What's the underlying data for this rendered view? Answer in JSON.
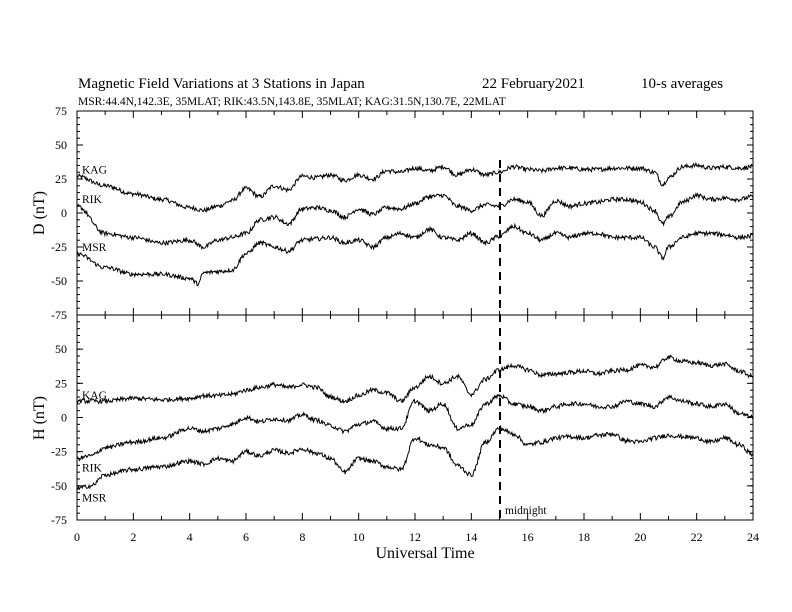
{
  "header": {
    "title": "Magnetic Field Variations at 3 Stations in Japan",
    "date": "22 February2021",
    "averaging": "10-s averages",
    "stations_line": "MSR:44.4N,142.3E, 35MLAT;  RIK:43.5N,143.8E, 35MLAT;  KAG:31.5N,130.7E, 22MLAT"
  },
  "chart_data": [
    {
      "type": "line",
      "panel": "top",
      "ylabel": "D (nT)",
      "ylim": [
        -75,
        75
      ],
      "xlim": [
        0,
        24
      ],
      "yticks": [
        "75",
        "50",
        "25",
        "0",
        "-25",
        "-50",
        "-75"
      ],
      "series": [
        {
          "name": "KAG",
          "x": [
            0,
            1,
            2,
            3,
            4,
            4.5,
            5,
            5.5,
            6,
            6.5,
            7,
            7.5,
            8,
            8.5,
            9,
            9.5,
            10,
            10.5,
            11,
            11.5,
            12,
            12.5,
            13,
            13.5,
            14,
            14.5,
            15,
            15.5,
            16,
            16.5,
            17,
            17.5,
            18,
            18.5,
            19,
            19.5,
            20,
            20.5,
            20.8,
            21,
            21.5,
            22,
            22.5,
            23,
            23.5,
            24
          ],
          "y": [
            27,
            20,
            14,
            10,
            4,
            2,
            5,
            9,
            18,
            12,
            20,
            17,
            27,
            26,
            28,
            24,
            28,
            25,
            31,
            30,
            33,
            31,
            34,
            28,
            32,
            28,
            30,
            34,
            32,
            31,
            33,
            33,
            32,
            32,
            33,
            33,
            33,
            30,
            21,
            26,
            34,
            35,
            33,
            34,
            33,
            34
          ]
        },
        {
          "name": "RIK",
          "x": [
            0,
            1,
            2,
            3,
            4,
            4.5,
            5,
            5.5,
            6,
            6.5,
            7,
            7.5,
            8,
            8.5,
            9,
            9.5,
            10,
            10.5,
            11,
            11.5,
            12,
            12.5,
            13,
            13.5,
            14,
            14.5,
            15,
            15.5,
            16,
            16.5,
            17,
            17.5,
            18,
            18.5,
            19,
            19.5,
            20,
            20.5,
            20.8,
            21,
            21.5,
            22,
            22.5,
            23,
            23.5,
            24
          ],
          "y": [
            5,
            -15,
            -18,
            -22,
            -20,
            -25,
            -20,
            -18,
            -15,
            -5,
            -3,
            -8,
            3,
            4,
            2,
            -3,
            3,
            -1,
            4,
            3,
            7,
            12,
            13,
            5,
            2,
            6,
            5,
            10,
            8,
            -2,
            9,
            5,
            7,
            8,
            10,
            10,
            8,
            2,
            -8,
            -3,
            8,
            13,
            10,
            11,
            10,
            12
          ]
        },
        {
          "name": "MSR",
          "x": [
            0,
            1,
            2,
            3,
            4,
            4.3,
            4.5,
            5,
            5.5,
            6,
            6.5,
            7,
            7.5,
            8,
            8.5,
            9,
            9.5,
            10,
            10.5,
            11,
            11.5,
            12,
            12.5,
            13,
            13.5,
            14,
            14.5,
            15,
            15.5,
            16,
            16.5,
            17,
            17.5,
            18,
            18.5,
            19,
            19.5,
            20,
            20.5,
            20.8,
            21,
            21.5,
            22,
            22.5,
            23,
            23.5,
            24
          ],
          "y": [
            -30,
            -40,
            -45,
            -45,
            -48,
            -52,
            -44,
            -43,
            -42,
            -30,
            -22,
            -25,
            -28,
            -20,
            -19,
            -18,
            -22,
            -20,
            -25,
            -18,
            -15,
            -18,
            -12,
            -18,
            -20,
            -15,
            -22,
            -17,
            -10,
            -15,
            -20,
            -15,
            -18,
            -15,
            -15,
            -18,
            -18,
            -18,
            -25,
            -33,
            -25,
            -18,
            -15,
            -15,
            -16,
            -18,
            -17
          ]
        }
      ]
    },
    {
      "type": "line",
      "panel": "bottom",
      "xlabel": "Universal Time",
      "ylabel": "H (nT)",
      "ylim": [
        -75,
        75
      ],
      "xlim": [
        0,
        24
      ],
      "xticks": [
        "0",
        "2",
        "4",
        "6",
        "8",
        "10",
        "12",
        "14",
        "16",
        "18",
        "20",
        "22",
        "24"
      ],
      "yticks": [
        "50",
        "25",
        "0",
        "-25",
        "-50",
        "-75"
      ],
      "annotation": {
        "text": "midnight",
        "x": 15
      },
      "series": [
        {
          "name": "KAG",
          "x": [
            0,
            1,
            2,
            3,
            4,
            4.5,
            5,
            5.5,
            6,
            6.5,
            7,
            7.5,
            8,
            8.5,
            9,
            9.5,
            10,
            10.5,
            11,
            11.5,
            12,
            12.5,
            13,
            13.5,
            14,
            14.5,
            15,
            15.5,
            16,
            16.5,
            17,
            17.5,
            18,
            18.5,
            19,
            19.5,
            20,
            20.5,
            21,
            21.5,
            22,
            22.5,
            23,
            23.5,
            24
          ],
          "y": [
            12,
            12,
            14,
            13,
            14,
            16,
            16,
            17,
            20,
            22,
            24,
            22,
            24,
            22,
            15,
            12,
            16,
            20,
            18,
            12,
            22,
            30,
            25,
            30,
            17,
            28,
            35,
            38,
            35,
            31,
            32,
            33,
            34,
            32,
            34,
            35,
            38,
            37,
            44,
            41,
            40,
            38,
            39,
            34,
            30
          ]
        },
        {
          "name": "RIK",
          "x": [
            0,
            0.5,
            1,
            2,
            3,
            4,
            4.5,
            5,
            5.5,
            6,
            6.5,
            7,
            7.5,
            8,
            8.5,
            9,
            9.5,
            10,
            10.5,
            11,
            11.5,
            12,
            12.5,
            13,
            13.5,
            14,
            14.5,
            15,
            15.5,
            16,
            16.5,
            17,
            17.5,
            18,
            18.5,
            19,
            19.5,
            20,
            20.5,
            21,
            21.5,
            22,
            22.5,
            23,
            23.5,
            24
          ],
          "y": [
            -30,
            -28,
            -22,
            -18,
            -15,
            -8,
            -10,
            -8,
            -5,
            0,
            -3,
            -1,
            -2,
            2,
            -2,
            -6,
            -10,
            -5,
            -3,
            -8,
            -8,
            12,
            5,
            10,
            -8,
            -5,
            10,
            16,
            10,
            8,
            5,
            8,
            10,
            10,
            8,
            8,
            12,
            10,
            8,
            15,
            12,
            10,
            8,
            10,
            3,
            0
          ]
        },
        {
          "name": "MSR",
          "x": [
            0,
            0.5,
            1,
            2,
            3,
            4,
            4.5,
            5,
            5.5,
            6,
            6.5,
            7,
            7.5,
            8,
            8.5,
            9,
            9.5,
            10,
            10.5,
            11,
            11.5,
            12,
            12.5,
            13,
            13.5,
            14,
            14.5,
            15,
            15.5,
            16,
            16.5,
            17,
            17.5,
            18,
            18.5,
            19,
            19.5,
            20,
            20.5,
            21,
            21.5,
            22,
            22.5,
            23,
            23.5,
            24
          ],
          "y": [
            -52,
            -50,
            -42,
            -38,
            -36,
            -32,
            -34,
            -30,
            -32,
            -25,
            -28,
            -24,
            -26,
            -23,
            -26,
            -30,
            -40,
            -30,
            -32,
            -36,
            -38,
            -15,
            -20,
            -22,
            -35,
            -42,
            -18,
            -8,
            -12,
            -20,
            -18,
            -15,
            -14,
            -15,
            -13,
            -12,
            -17,
            -18,
            -15,
            -13,
            -14,
            -15,
            -18,
            -15,
            -20,
            -27
          ]
        }
      ]
    }
  ]
}
